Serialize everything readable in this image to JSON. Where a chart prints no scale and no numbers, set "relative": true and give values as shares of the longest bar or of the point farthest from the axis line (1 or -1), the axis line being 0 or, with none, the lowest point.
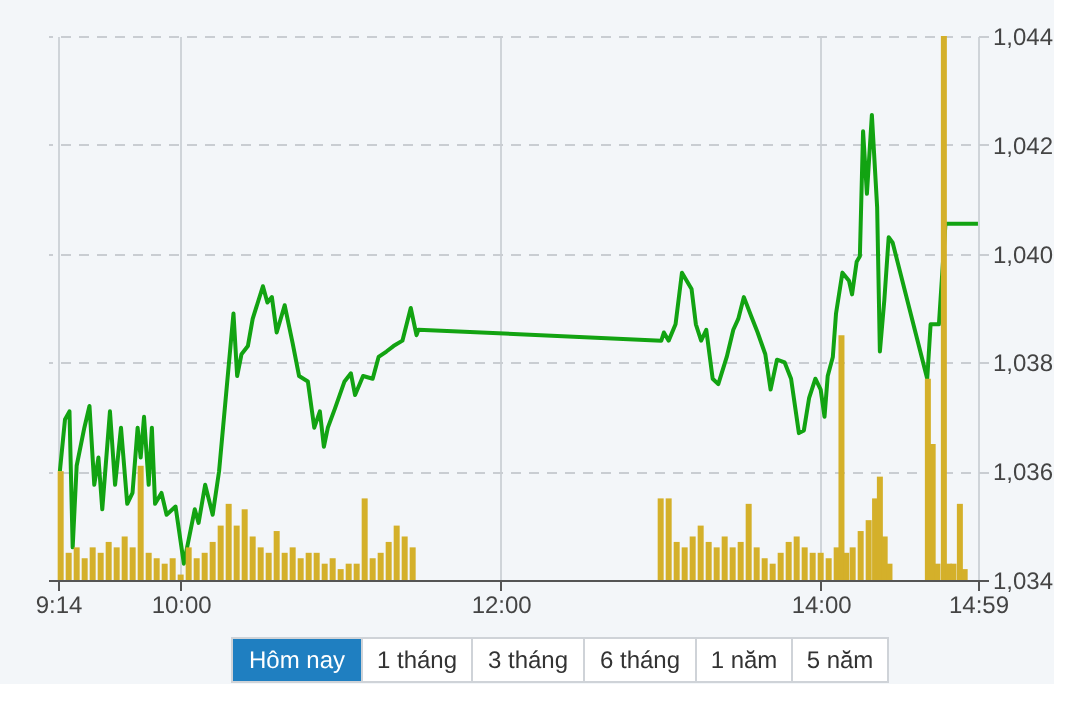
{
  "chart_data": [
    {
      "type": "line",
      "xlim": [
        9.2333,
        14.9833
      ],
      "xticks": [
        {
          "value": 9.2333,
          "label": "9:14"
        },
        {
          "value": 10,
          "label": "10:00"
        },
        {
          "value": 12,
          "label": "12:00"
        },
        {
          "value": 14,
          "label": "14:00"
        },
        {
          "value": 14.9833,
          "label": "14:59"
        }
      ],
      "ylim": [
        1034,
        1044
      ],
      "yticks": [
        {
          "value": 1034,
          "label": "1,034"
        },
        {
          "value": 1036,
          "label": "1,036"
        },
        {
          "value": 1038,
          "label": "1,038"
        },
        {
          "value": 1040,
          "label": "1,040"
        },
        {
          "value": 1042,
          "label": "1,042"
        },
        {
          "value": 1044,
          "label": "1,044"
        }
      ],
      "grid": true,
      "line_style": "solid",
      "series": [
        {
          "color": "#12a312",
          "x": [
            9.245,
            9.277,
            9.305,
            9.325,
            9.35,
            9.398,
            9.43,
            9.46,
            9.486,
            9.51,
            9.558,
            9.59,
            9.627,
            9.666,
            9.699,
            9.731,
            9.75,
            9.771,
            9.8,
            9.82,
            9.84,
            9.88,
            9.912,
            9.968,
            10.02,
            10.088,
            10.112,
            10.153,
            10.2,
            10.24,
            10.33,
            10.353,
            10.38,
            10.42,
            10.45,
            10.514,
            10.542,
            10.57,
            10.6,
            10.65,
            10.7,
            10.74,
            10.795,
            10.835,
            10.87,
            10.895,
            10.92,
            10.964,
            11.024,
            11.064,
            11.09,
            11.14,
            11.2,
            11.237,
            11.286,
            11.33,
            11.386,
            11.438,
            11.474,
            11.486,
            13.004,
            13.02,
            13.05,
            13.093,
            13.133,
            13.193,
            13.22,
            13.253,
            13.285,
            13.325,
            13.36,
            13.413,
            13.454,
            13.485,
            13.52,
            13.566,
            13.606,
            13.654,
            13.687,
            13.727,
            13.775,
            13.815,
            13.864,
            13.895,
            13.928,
            13.967,
            14.0,
            14.024,
            14.044,
            14.076,
            14.096,
            14.136,
            14.177,
            14.196,
            14.225,
            14.245,
            14.265,
            14.289,
            14.32,
            14.353,
            14.37,
            14.398,
            14.425,
            14.45,
            14.666,
            14.687,
            14.739,
            14.78,
            14.983
          ],
          "values": [
            1036.0,
            1036.95,
            1037.1,
            1034.6,
            1036.1,
            1036.8,
            1037.2,
            1035.75,
            1036.25,
            1035.3,
            1037.1,
            1035.75,
            1036.8,
            1035.4,
            1035.6,
            1036.8,
            1036.25,
            1037.0,
            1035.75,
            1036.8,
            1035.4,
            1035.6,
            1035.2,
            1035.35,
            1034.3,
            1035.3,
            1035.05,
            1035.75,
            1035.2,
            1036.0,
            1038.9,
            1037.75,
            1038.15,
            1038.3,
            1038.8,
            1039.4,
            1039.1,
            1039.2,
            1038.55,
            1039.05,
            1038.35,
            1037.75,
            1037.65,
            1036.8,
            1037.1,
            1036.45,
            1036.8,
            1037.15,
            1037.65,
            1037.8,
            1037.4,
            1037.75,
            1037.7,
            1038.1,
            1038.2,
            1038.3,
            1038.4,
            1039.0,
            1038.5,
            1038.6,
            1038.4,
            1038.55,
            1038.4,
            1038.7,
            1039.65,
            1039.35,
            1038.7,
            1038.4,
            1038.6,
            1037.7,
            1037.6,
            1038.1,
            1038.6,
            1038.8,
            1039.2,
            1038.85,
            1038.55,
            1038.15,
            1037.5,
            1038.05,
            1038.0,
            1037.7,
            1036.7,
            1036.75,
            1037.35,
            1037.7,
            1037.5,
            1037.0,
            1037.75,
            1038.1,
            1038.9,
            1039.65,
            1039.5,
            1039.25,
            1039.85,
            1039.95,
            1042.25,
            1041.1,
            1042.55,
            1040.85,
            1038.2,
            1039.15,
            1040.3,
            1040.2,
            1037.7,
            1038.7,
            1038.7,
            1040.55,
            1040.55
          ]
        }
      ],
      "annotations": [
        "Hôm nay",
        "1 tháng",
        "3 tháng",
        "6 tháng",
        "1 năm",
        "5 năm"
      ]
    },
    {
      "type": "bar",
      "relative": true,
      "tick_labels": false,
      "xlim": [
        9.2333,
        14.9833
      ],
      "x": [
        9.25,
        9.3,
        9.35,
        9.4,
        9.45,
        9.5,
        9.55,
        9.6,
        9.65,
        9.7,
        9.75,
        9.8,
        9.85,
        9.9,
        9.95,
        10.0,
        10.05,
        10.1,
        10.15,
        10.2,
        10.25,
        10.3,
        10.35,
        10.4,
        10.45,
        10.5,
        10.55,
        10.6,
        10.65,
        10.7,
        10.75,
        10.8,
        10.85,
        10.9,
        10.95,
        11.0,
        11.05,
        11.1,
        11.15,
        11.2,
        11.25,
        11.3,
        11.35,
        11.4,
        11.45,
        13.0,
        13.05,
        13.1,
        13.15,
        13.2,
        13.25,
        13.3,
        13.35,
        13.4,
        13.45,
        13.5,
        13.55,
        13.6,
        13.65,
        13.7,
        13.75,
        13.8,
        13.85,
        13.9,
        13.95,
        14.0,
        14.05,
        14.1,
        14.13,
        14.16,
        14.2,
        14.25,
        14.3,
        14.34,
        14.37,
        14.4,
        14.43,
        14.67,
        14.7,
        14.73,
        14.77,
        14.8,
        14.83,
        14.87,
        14.9
      ],
      "series": [
        {
          "color": "#d4b02a",
          "values": [
            0.2,
            0.05,
            0.06,
            0.04,
            0.06,
            0.05,
            0.07,
            0.06,
            0.08,
            0.06,
            0.21,
            0.05,
            0.04,
            0.03,
            0.04,
            0.01,
            0.06,
            0.04,
            0.05,
            0.07,
            0.1,
            0.14,
            0.1,
            0.13,
            0.08,
            0.06,
            0.05,
            0.09,
            0.05,
            0.06,
            0.04,
            0.05,
            0.05,
            0.03,
            0.04,
            0.02,
            0.03,
            0.03,
            0.15,
            0.04,
            0.05,
            0.07,
            0.1,
            0.08,
            0.06,
            0.15,
            0.15,
            0.07,
            0.06,
            0.08,
            0.1,
            0.07,
            0.06,
            0.08,
            0.06,
            0.07,
            0.14,
            0.06,
            0.04,
            0.03,
            0.05,
            0.07,
            0.08,
            0.06,
            0.05,
            0.05,
            0.04,
            0.06,
            0.45,
            0.05,
            0.06,
            0.09,
            0.11,
            0.15,
            0.19,
            0.08,
            0.03,
            0.37,
            0.25,
            0.03,
            1.0,
            0.03,
            0.03,
            0.14,
            0.02
          ]
        }
      ]
    }
  ]
}
